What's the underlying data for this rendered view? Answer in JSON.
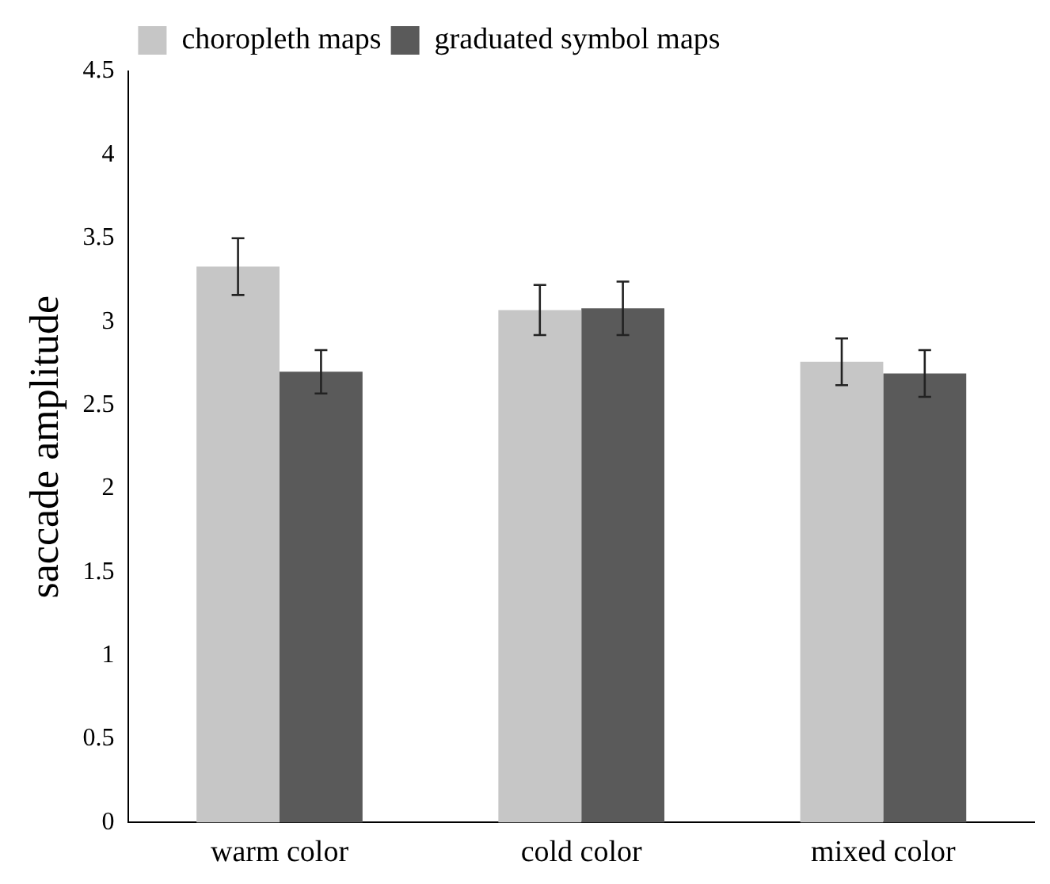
{
  "chart_data": {
    "type": "bar",
    "ylabel": "saccade amplitude",
    "categories": [
      "warm color",
      "cold color",
      "mixed color"
    ],
    "series": [
      {
        "name": "choropleth maps",
        "color": "#c6c6c6",
        "values": [
          3.33,
          3.07,
          2.76
        ],
        "errors": [
          0.17,
          0.15,
          0.14
        ]
      },
      {
        "name": "graduated symbol maps",
        "color": "#5a5a5a",
        "values": [
          2.7,
          3.08,
          2.69
        ],
        "errors": [
          0.13,
          0.16,
          0.14
        ]
      }
    ],
    "ylim": [
      0,
      4.5
    ],
    "yticks": [
      0,
      0.5,
      1,
      1.5,
      2,
      2.5,
      3,
      3.5,
      4,
      4.5
    ],
    "grid": false,
    "legend": "top left"
  }
}
